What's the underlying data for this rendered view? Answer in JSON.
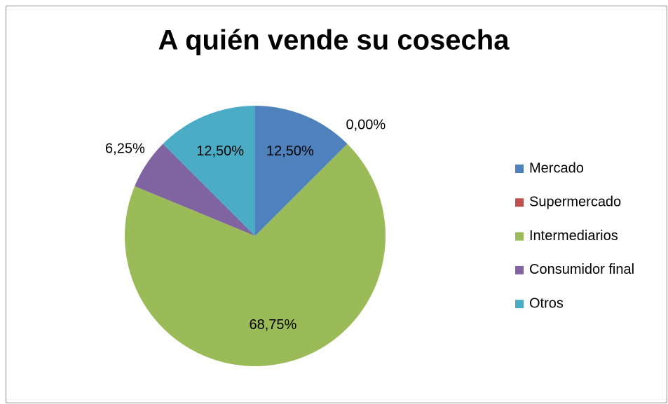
{
  "chart_data": {
    "type": "pie",
    "title": "A quién vende su cosecha",
    "categories": [
      "Mercado",
      "Supermercado",
      "Intermediarios",
      "Consumidor final",
      "Otros"
    ],
    "values": [
      12.5,
      0,
      68.75,
      6.25,
      12.5
    ],
    "value_labels": [
      "12,50%",
      "0,00%",
      "68,75%",
      "6,25%",
      "12,50%"
    ],
    "colors": [
      "#4f81bd",
      "#c0504d",
      "#9bbb59",
      "#8064a2",
      "#4bacc6"
    ],
    "legend": "right"
  }
}
